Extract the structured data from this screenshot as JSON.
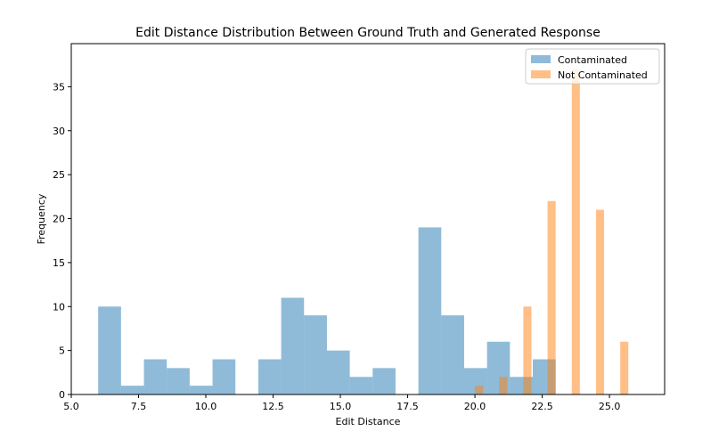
{
  "chart_data": {
    "type": "histogram",
    "title": "Edit Distance Distribution Between Ground Truth and Generated Response",
    "xlabel": "Edit Distance",
    "ylabel": "Frequency",
    "xlim": [
      5.0,
      27.05
    ],
    "ylim": [
      0,
      39.9
    ],
    "xticks": [
      5.0,
      7.5,
      10.0,
      12.5,
      15.0,
      17.5,
      20.0,
      22.5,
      25.0
    ],
    "xtick_labels": [
      "5.0",
      "7.5",
      "10.0",
      "12.5",
      "15.0",
      "17.5",
      "20.0",
      "22.5",
      "25.0"
    ],
    "yticks": [
      0,
      5,
      10,
      15,
      20,
      25,
      30,
      35
    ],
    "ytick_labels": [
      "0",
      "5",
      "10",
      "15",
      "20",
      "25",
      "30",
      "35"
    ],
    "legend_position": "top-right",
    "series": [
      {
        "name": "Contaminated",
        "color": "#1f77b4",
        "alpha": 0.5,
        "bins": [
          {
            "x0": 6.0,
            "x1": 6.85,
            "value": 10
          },
          {
            "x0": 6.85,
            "x1": 7.7,
            "value": 1
          },
          {
            "x0": 7.7,
            "x1": 8.55,
            "value": 4
          },
          {
            "x0": 8.55,
            "x1": 9.4,
            "value": 3
          },
          {
            "x0": 9.4,
            "x1": 10.25,
            "value": 1
          },
          {
            "x0": 10.25,
            "x1": 11.1,
            "value": 4
          },
          {
            "x0": 11.1,
            "x1": 11.95,
            "value": 0
          },
          {
            "x0": 11.95,
            "x1": 12.8,
            "value": 4
          },
          {
            "x0": 12.8,
            "x1": 13.65,
            "value": 11
          },
          {
            "x0": 13.65,
            "x1": 14.5,
            "value": 9
          },
          {
            "x0": 14.5,
            "x1": 15.35,
            "value": 5
          },
          {
            "x0": 15.35,
            "x1": 16.2,
            "value": 2
          },
          {
            "x0": 16.2,
            "x1": 17.05,
            "value": 3
          },
          {
            "x0": 17.05,
            "x1": 17.9,
            "value": 0
          },
          {
            "x0": 17.9,
            "x1": 18.75,
            "value": 19
          },
          {
            "x0": 18.75,
            "x1": 19.6,
            "value": 9
          },
          {
            "x0": 19.6,
            "x1": 20.45,
            "value": 3
          },
          {
            "x0": 20.45,
            "x1": 21.3,
            "value": 6
          },
          {
            "x0": 21.3,
            "x1": 22.15,
            "value": 2
          },
          {
            "x0": 22.15,
            "x1": 23.0,
            "value": 4
          }
        ]
      },
      {
        "name": "Not Contaminated",
        "color": "#ff7f0e",
        "alpha": 0.5,
        "bins": [
          {
            "x0": 20.0,
            "x1": 20.3,
            "value": 1
          },
          {
            "x0": 20.9,
            "x1": 21.2,
            "value": 2
          },
          {
            "x0": 21.8,
            "x1": 22.1,
            "value": 10
          },
          {
            "x0": 22.7,
            "x1": 23.0,
            "value": 22
          },
          {
            "x0": 23.6,
            "x1": 23.9,
            "value": 37
          },
          {
            "x0": 24.5,
            "x1": 24.8,
            "value": 21
          },
          {
            "x0": 25.4,
            "x1": 25.7,
            "value": 6
          }
        ]
      }
    ]
  }
}
